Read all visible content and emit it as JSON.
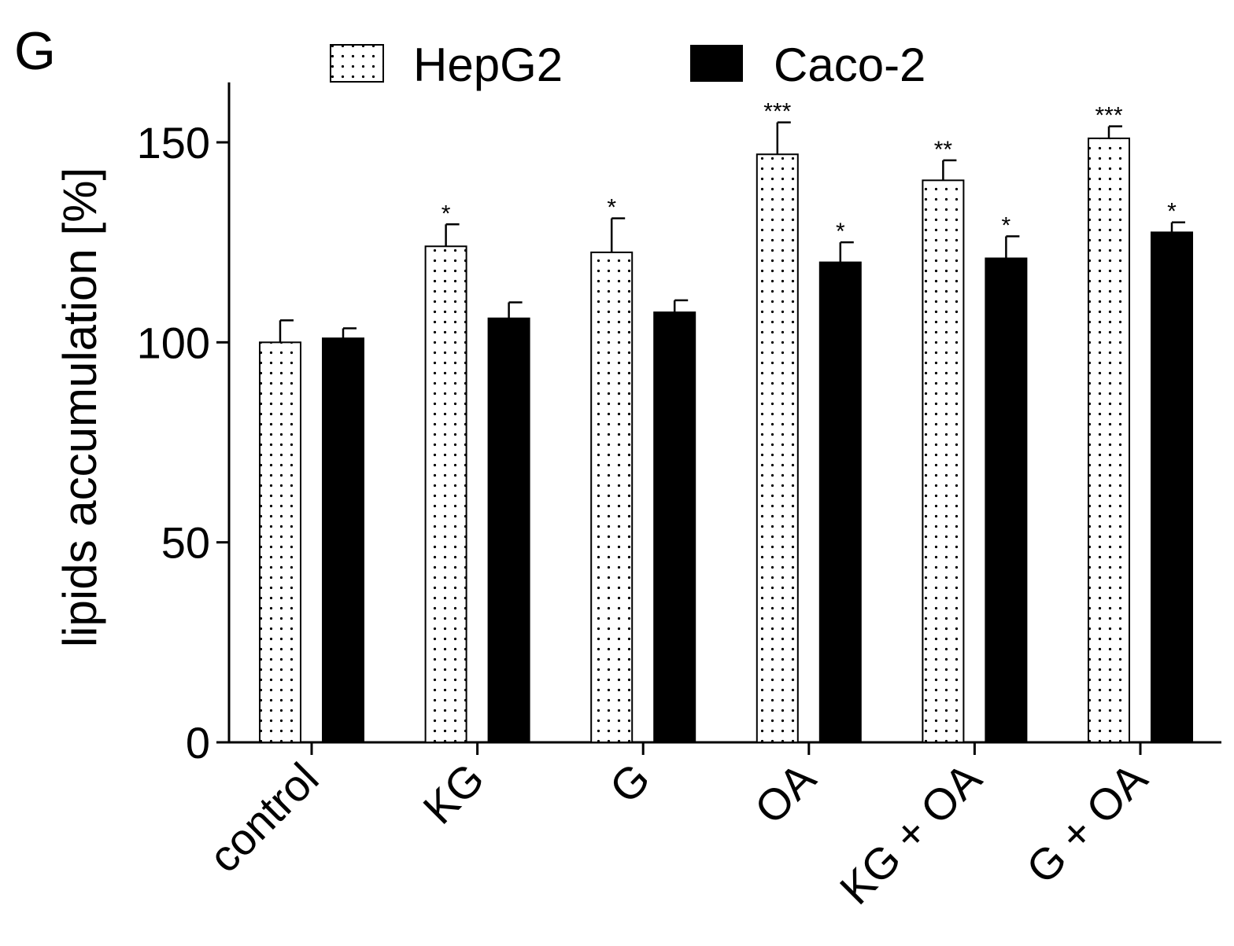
{
  "panel_label": "G",
  "chart_data": {
    "type": "bar",
    "title": "",
    "xlabel": "",
    "ylabel": "lipids accumulation [%]",
    "ylim": [
      0,
      165
    ],
    "yticks": [
      0,
      50,
      100,
      150
    ],
    "grid": false,
    "legend_position": "top",
    "categories": [
      "control",
      "KG",
      "G",
      "OA",
      "KG + OA",
      "G + OA"
    ],
    "series": [
      {
        "name": "HepG2",
        "pattern": "dots",
        "fill": "#ffffff",
        "values": [
          100,
          124,
          122.5,
          147,
          140.5,
          151
        ],
        "errors": [
          5.5,
          5.5,
          8.5,
          8,
          5,
          3
        ],
        "significance": [
          "",
          "*",
          "*",
          "***",
          "**",
          "***"
        ]
      },
      {
        "name": "Caco-2",
        "pattern": "solid",
        "fill": "#000000",
        "values": [
          101,
          106,
          107.5,
          120,
          121,
          127.5
        ],
        "errors": [
          2.5,
          4,
          3,
          5,
          5.5,
          2.5
        ],
        "significance": [
          "",
          "",
          "",
          "*",
          "*",
          "*"
        ]
      }
    ]
  }
}
